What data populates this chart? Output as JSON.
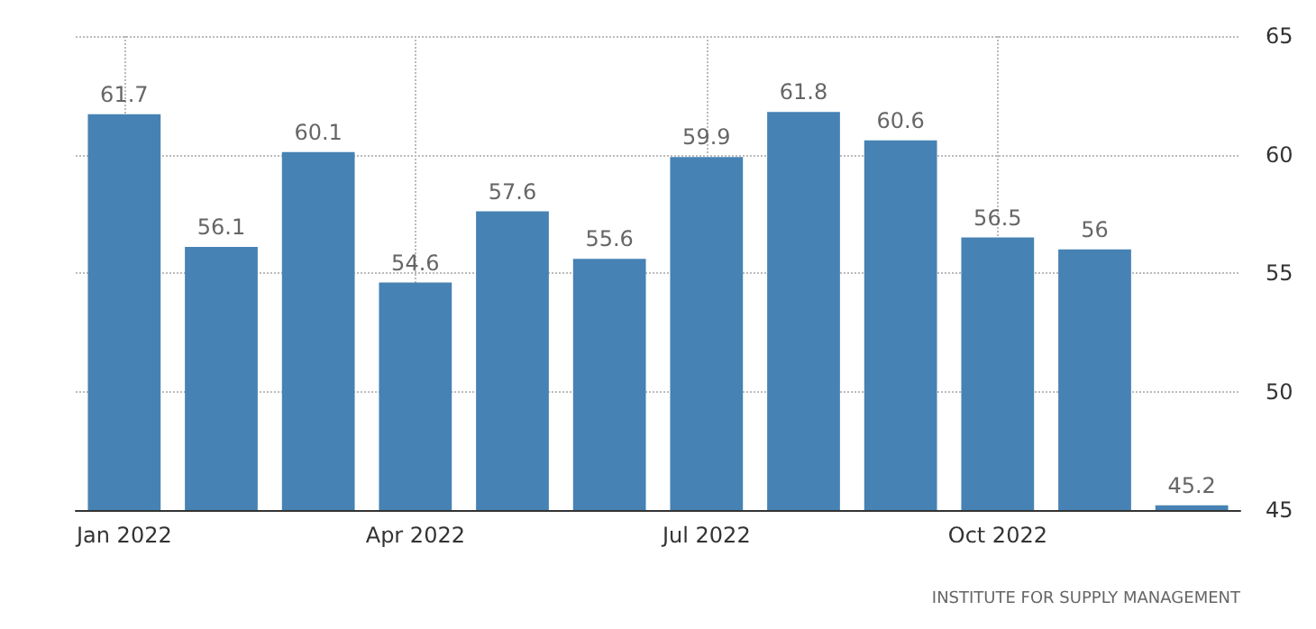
{
  "chart_data": {
    "type": "bar",
    "categories": [
      "Jan 2022",
      null,
      null,
      "Apr 2022",
      null,
      null,
      "Jul 2022",
      null,
      null,
      "Oct 2022",
      null,
      null
    ],
    "values": [
      61.7,
      56.1,
      60.1,
      54.6,
      57.6,
      55.6,
      59.9,
      61.8,
      60.6,
      56.5,
      56,
      45.2
    ],
    "color": "#4682b4",
    "ylim": [
      45,
      65
    ],
    "yticks": [
      45,
      50,
      55,
      60,
      65
    ],
    "grid": true,
    "data_labels": true,
    "annotations": [
      "INSTITUTE FOR SUPPLY MANAGEMENT"
    ]
  }
}
